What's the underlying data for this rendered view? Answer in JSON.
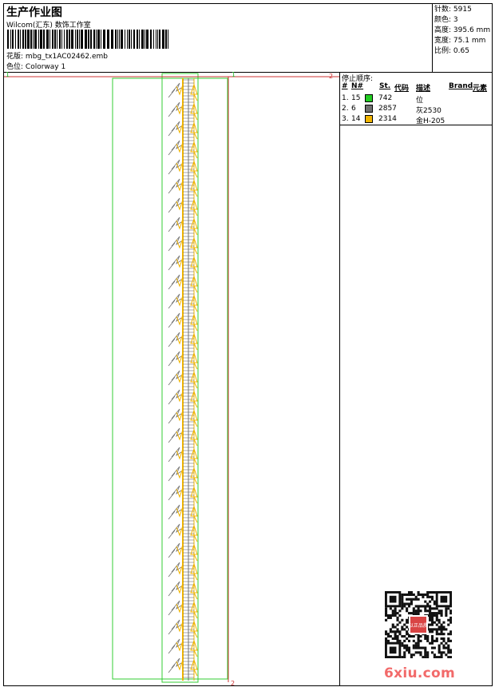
{
  "header": {
    "title": "生产作业图",
    "company": "Wilcom(汇东) 数饰工作室",
    "design_file_label": "花版:",
    "design_file": "mbg_tx1AC02462.emb",
    "colorway_label": "色位:",
    "colorway": "Colorway 1"
  },
  "stats": [
    {
      "label": "针数:",
      "value": "5915"
    },
    {
      "label": "颜色:",
      "value": "3"
    },
    {
      "label": "高度:",
      "value": "395.6 mm"
    },
    {
      "label": "宽度:",
      "value": "75.1 mm"
    },
    {
      "label": "比例:",
      "value": "0.65"
    }
  ],
  "stop_sequence": {
    "title": "停止顺序:",
    "columns": [
      "#",
      "N#",
      "St.",
      "代码",
      "描述",
      "Brand",
      "元素"
    ],
    "rows": [
      {
        "index": "1.",
        "needle": "15",
        "color": "#22cc22",
        "code": "742",
        "description": "位"
      },
      {
        "index": "2.",
        "needle": "6",
        "color": "#707070",
        "code": "2857",
        "description": "灰2530"
      },
      {
        "index": "3.",
        "needle": "14",
        "color": "#f0b400",
        "code": "2314",
        "description": "金H-205"
      }
    ]
  },
  "markers": {
    "top_left": "1",
    "top_center": "1",
    "top_right": "2",
    "bottom": "2"
  },
  "watermark": "6xiu.com",
  "stamp_text": "以正品质"
}
